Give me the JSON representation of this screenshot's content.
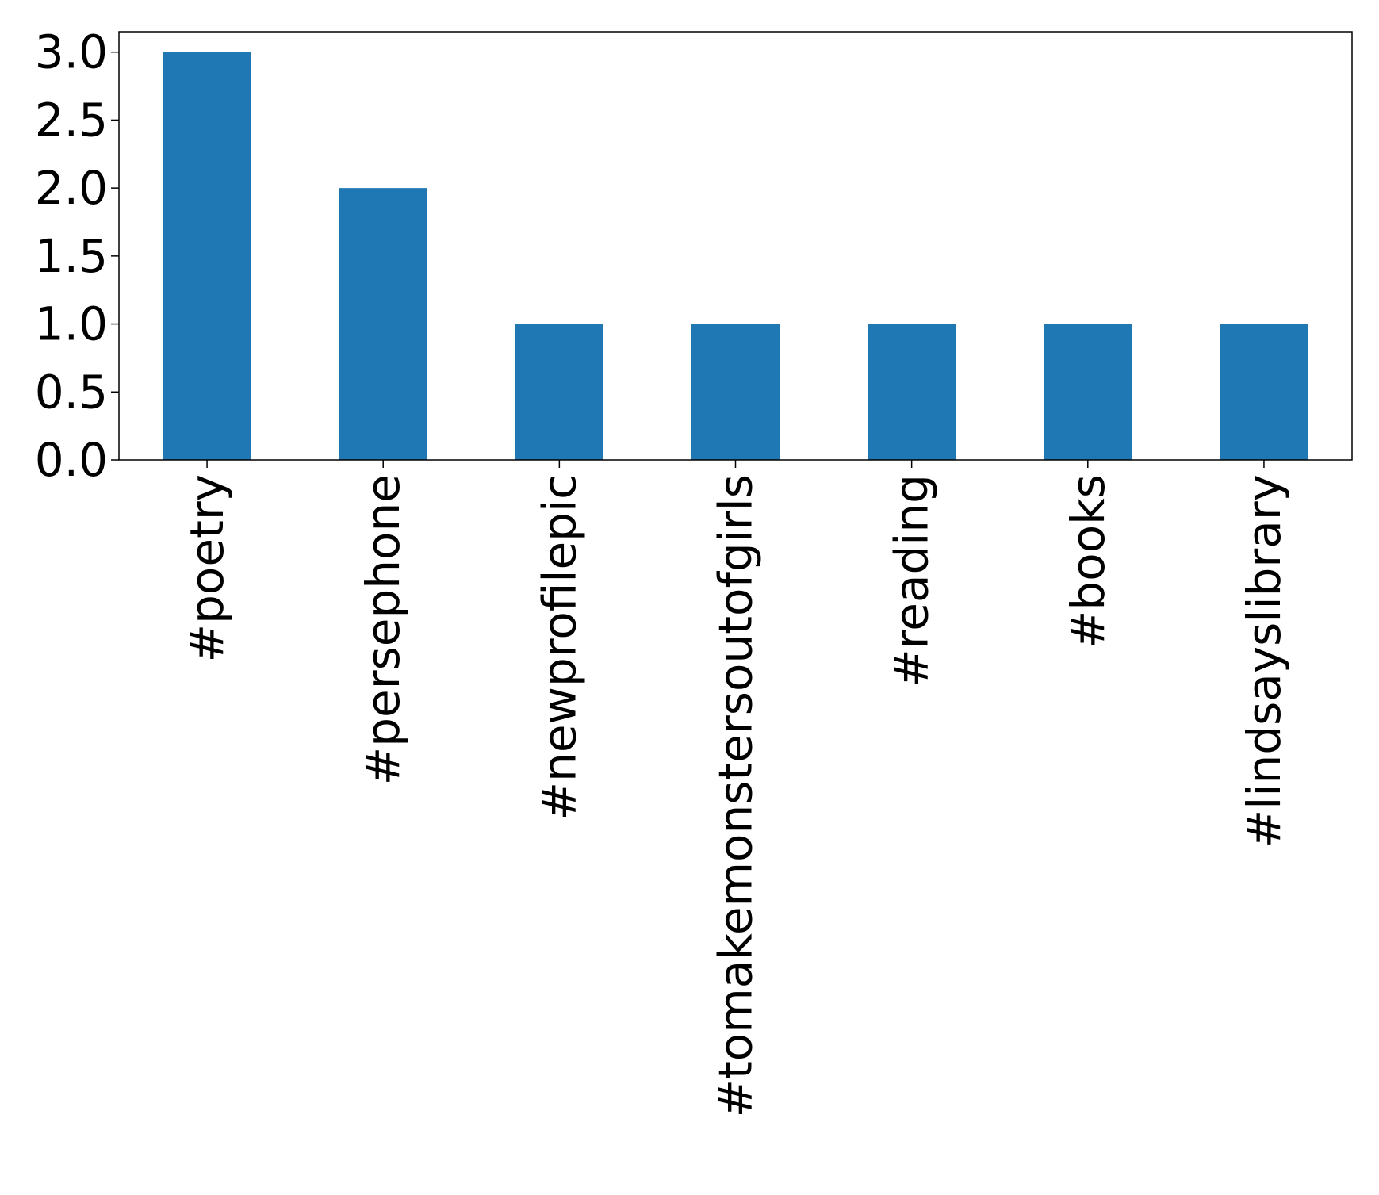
{
  "chart_data": {
    "type": "bar",
    "categories": [
      "#poetry",
      "#persephone",
      "#newprofilepic",
      "#tomakemonstersoutofgirls",
      "#reading",
      "#books",
      "#lindsayslibrary"
    ],
    "values": [
      3,
      2,
      1,
      1,
      1,
      1,
      1
    ],
    "ylim": [
      0,
      3.15
    ],
    "yticks": [
      "0.0",
      "0.5",
      "1.0",
      "1.5",
      "2.0",
      "2.5",
      "3.0"
    ],
    "bar_color": "#1f77b4",
    "grid": false,
    "legend": "none"
  }
}
